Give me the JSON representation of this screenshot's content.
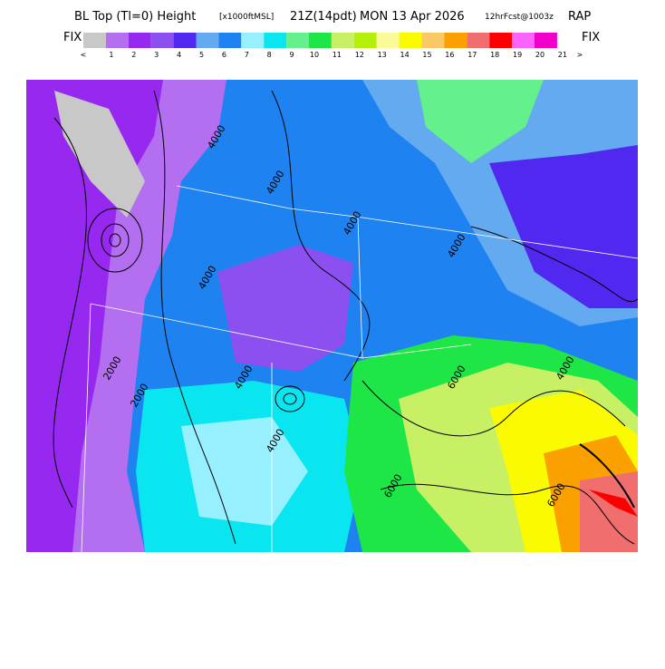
{
  "header": {
    "title": "BL Top (Tl=0) Height",
    "units": "[x1000ftMSL]",
    "valid_time": "21Z(14pdt)",
    "date": "MON 13 Apr 2026",
    "forecast": "12hrFcst@1003z",
    "model": "RAP"
  },
  "colorbar": {
    "left_label": "FIX",
    "right_label": "FIX",
    "colors": [
      "#c8c8c8",
      "#b46ef0",
      "#9628f0",
      "#8c50f0",
      "#5028f0",
      "#64aaf0",
      "#1e82f0",
      "#96f0ff",
      "#0ae6f0",
      "#64f08c",
      "#1ee646",
      "#c8f064",
      "#b4f00a",
      "#fafa96",
      "#fafa00",
      "#fac864",
      "#faa000",
      "#f06e6e",
      "#fa0000",
      "#fa64fa",
      "#f000c8"
    ],
    "labels": [
      "<",
      "1",
      "2",
      "3",
      "4",
      "5",
      "6",
      "7",
      "8",
      "9",
      "10",
      "11",
      "12",
      "13",
      "14",
      "15",
      "16",
      "17",
      "18",
      "19",
      "20",
      "21",
      ">"
    ]
  },
  "map": {
    "contour_labels": [
      "4000",
      "4000",
      "4000",
      "4000",
      "4000",
      "2000",
      "2000",
      "4000",
      "6000",
      "6000",
      "6000",
      "4000",
      "4000"
    ]
  }
}
